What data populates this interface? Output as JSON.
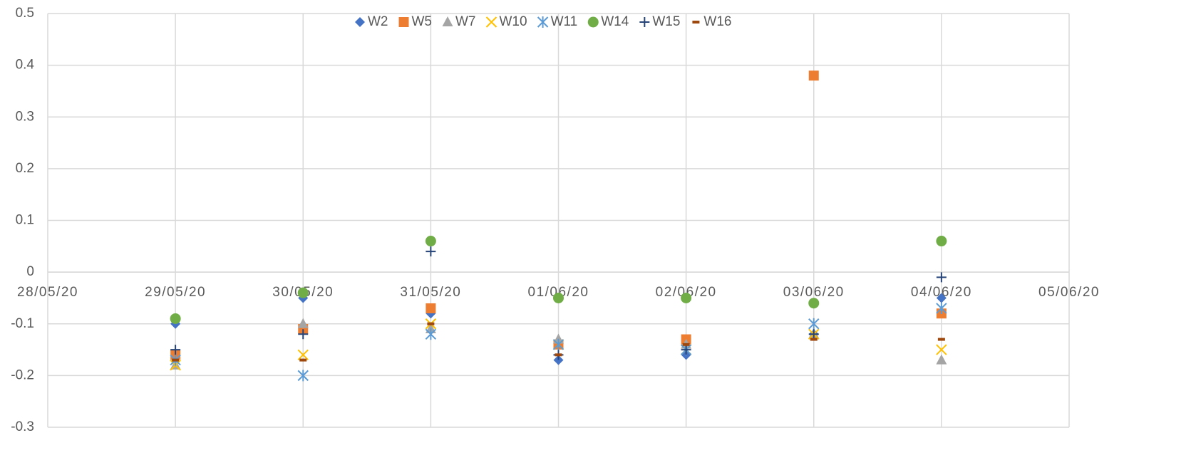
{
  "chart_data": {
    "type": "scatter",
    "categories": [
      "28/05/20",
      "29/05/20",
      "30/05/20",
      "31/05/20",
      "01/06/20",
      "02/06/20",
      "03/06/20",
      "04/06/20",
      "05/06/20"
    ],
    "ylim": [
      -0.3,
      0.5
    ],
    "yticks": [
      -0.3,
      -0.2,
      -0.1,
      0,
      0.1,
      0.2,
      0.3,
      0.4,
      0.5
    ],
    "grid": true,
    "legend": "top",
    "series": [
      {
        "name": "W2",
        "color": "#4472c4",
        "marker": "diamond",
        "values": [
          null,
          -0.1,
          -0.05,
          -0.08,
          -0.17,
          -0.16,
          -0.12,
          -0.05,
          null
        ]
      },
      {
        "name": "W5",
        "color": "#ed7d31",
        "marker": "square",
        "values": [
          null,
          -0.16,
          -0.11,
          -0.07,
          -0.14,
          -0.13,
          0.38,
          -0.08,
          null
        ]
      },
      {
        "name": "W7",
        "color": "#a5a5a5",
        "marker": "triangle",
        "values": [
          null,
          -0.18,
          -0.1,
          -0.11,
          -0.13,
          -0.14,
          -0.12,
          -0.17,
          null
        ]
      },
      {
        "name": "W10",
        "color": "#ffc000",
        "marker": "x",
        "values": [
          null,
          -0.18,
          -0.16,
          -0.1,
          -0.14,
          -0.15,
          -0.12,
          -0.15,
          null
        ]
      },
      {
        "name": "W11",
        "color": "#5b9bd5",
        "marker": "star",
        "values": [
          null,
          -0.17,
          -0.2,
          -0.12,
          -0.14,
          -0.15,
          -0.1,
          -0.07,
          null
        ]
      },
      {
        "name": "W14",
        "color": "#70ad47",
        "marker": "circle",
        "values": [
          null,
          -0.09,
          -0.04,
          0.06,
          -0.05,
          -0.05,
          -0.06,
          0.06,
          null
        ]
      },
      {
        "name": "W15",
        "color": "#264478",
        "marker": "plus",
        "values": [
          null,
          -0.15,
          -0.12,
          0.04,
          -0.16,
          -0.15,
          -0.12,
          -0.01,
          null
        ]
      },
      {
        "name": "W16",
        "color": "#9e480e",
        "marker": "dash",
        "values": [
          null,
          -0.17,
          -0.17,
          -0.1,
          -0.16,
          -0.14,
          -0.13,
          -0.13,
          null
        ]
      }
    ]
  }
}
